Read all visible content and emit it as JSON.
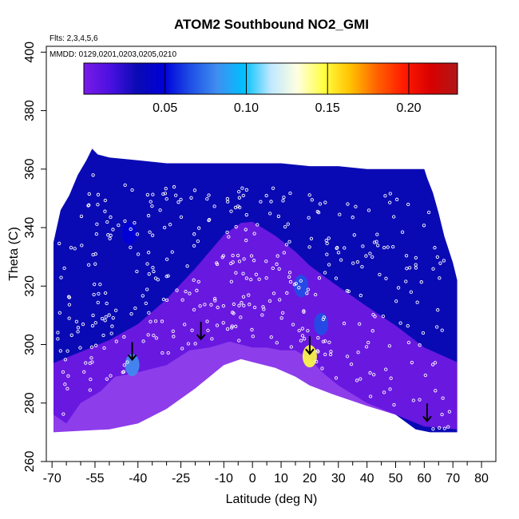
{
  "chart_data": {
    "type": "heatmap",
    "title": "ATOM2 Southbound NO2_GMI",
    "flights_note": "Flts: 2,3,4,5,6",
    "dates_note": "MMDD: 0129,0201,0203,0205,0210",
    "xlabel": "Latitude (deg N)",
    "ylabel": "Theta (C)",
    "xlim": [
      -72,
      85
    ],
    "ylim": [
      260,
      402
    ],
    "x_ticks": [
      -70,
      -55,
      -40,
      -25,
      -10,
      0,
      10,
      20,
      30,
      40,
      50,
      60,
      70,
      80
    ],
    "x_ticks_minor": [
      -65,
      -60,
      -50,
      -45,
      -35,
      -30,
      -20,
      -15,
      -5,
      5,
      15,
      25,
      35,
      45,
      55,
      65,
      75
    ],
    "y_ticks": [
      260,
      280,
      300,
      320,
      340,
      360,
      380,
      400
    ],
    "colorbar": {
      "min": 0.0,
      "max": 0.23,
      "ticks": [
        0.05,
        0.1,
        0.15,
        0.2
      ],
      "tick_labels": [
        "0.05",
        "0.10",
        "0.15",
        "0.20"
      ],
      "colors": [
        "#7a1be8",
        "#4a10e0",
        "#0a0ab4",
        "#0000d8",
        "#1f4fe6",
        "#3f8ff0",
        "#00c0ff",
        "#bfe8ff",
        "#ffffe0",
        "#ffff40",
        "#ffc000",
        "#ff6000",
        "#ff1a00",
        "#d80000",
        "#b01818"
      ]
    },
    "envelope": {
      "top": [
        [
          -69.5,
          335
        ],
        [
          -67,
          346
        ],
        [
          -64,
          351
        ],
        [
          -61,
          358
        ],
        [
          -58,
          363
        ],
        [
          -56,
          367
        ],
        [
          -54,
          365
        ],
        [
          -50,
          364
        ],
        [
          -40,
          363
        ],
        [
          -30,
          362
        ],
        [
          -20,
          362
        ],
        [
          -10,
          362
        ],
        [
          0,
          362
        ],
        [
          5,
          362
        ],
        [
          10,
          362
        ],
        [
          20,
          361
        ],
        [
          30,
          361
        ],
        [
          40,
          360
        ],
        [
          50,
          360
        ],
        [
          55,
          360
        ],
        [
          60,
          360
        ],
        [
          61,
          357
        ],
        [
          63,
          352
        ],
        [
          65,
          345
        ],
        [
          67,
          337
        ],
        [
          70,
          328
        ],
        [
          71.5,
          322
        ]
      ],
      "bottom": [
        [
          -69.5,
          276
        ],
        [
          -65,
          273
        ],
        [
          -60,
          280
        ],
        [
          -53,
          284
        ],
        [
          -48,
          289
        ],
        [
          -42,
          290
        ],
        [
          -30,
          293
        ],
        [
          -22,
          298
        ],
        [
          -15,
          299
        ],
        [
          -8,
          301
        ],
        [
          0,
          299
        ],
        [
          5,
          299
        ],
        [
          10,
          298
        ],
        [
          15,
          298
        ],
        [
          20,
          295
        ],
        [
          25,
          290
        ],
        [
          30,
          286
        ],
        [
          40,
          280
        ],
        [
          50,
          276
        ],
        [
          57,
          271
        ],
        [
          62,
          270
        ],
        [
          71.5,
          270
        ]
      ]
    },
    "ridge": [
      [
        -69.5,
        270
      ],
      [
        -50,
        271
      ],
      [
        -40,
        273
      ],
      [
        -30,
        278
      ],
      [
        -20,
        285
      ],
      [
        -10,
        293
      ],
      [
        -4,
        295
      ],
      [
        0,
        294
      ],
      [
        8,
        292
      ],
      [
        15,
        289
      ],
      [
        20,
        286
      ],
      [
        28,
        283
      ],
      [
        40,
        279
      ],
      [
        50,
        276
      ],
      [
        60,
        272
      ],
      [
        71.5,
        271
      ]
    ],
    "blobs": [
      {
        "lat": -42,
        "theta": 293,
        "value": 0.09
      },
      {
        "lat": 20,
        "theta": 296,
        "value": 0.14
      },
      {
        "lat": 17,
        "theta": 320,
        "value": 0.07
      },
      {
        "lat": 24,
        "theta": 307,
        "value": 0.06
      },
      {
        "lat": -43,
        "theta": 338,
        "value": 0.055
      }
    ],
    "arrows": [
      {
        "lat": -42,
        "theta": 297
      },
      {
        "lat": -18,
        "theta": 304
      },
      {
        "lat": 20,
        "theta": 299
      },
      {
        "lat": 61,
        "theta": 276
      }
    ],
    "flight_track": {
      "color": "#ffffff",
      "marker": "open-circle"
    }
  }
}
